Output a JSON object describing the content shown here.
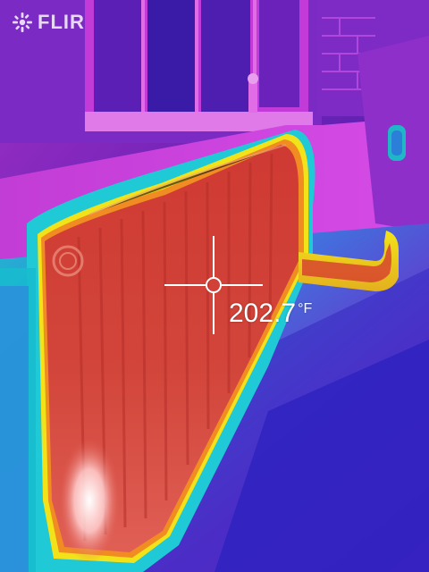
{
  "brand": {
    "name": "FLIR",
    "icon": "flir-logo-icon"
  },
  "measurement": {
    "value": "202.7",
    "unit": "°F",
    "spot_icon": "crosshair-icon"
  },
  "palette": {
    "background": "#5a1a8c",
    "cold": "#2a1fbf",
    "cool": "#b31fd1",
    "mid": "#18c9d6",
    "warm": "#f2e21a",
    "hot": "#d23b2b",
    "hottest": "#ffffff"
  }
}
